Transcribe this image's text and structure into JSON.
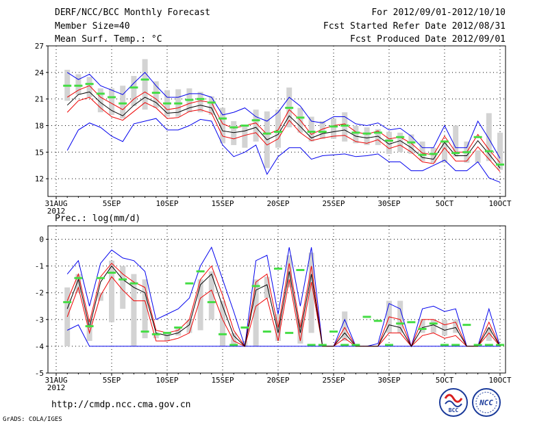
{
  "header": {
    "title": "DERF/NCC/BCC Monthly Forecast",
    "member_size": "Member Size=40",
    "variable": "Mean Surf. Temp.: °C",
    "period": "For 2012/09/01-2012/10/10",
    "refer_date": "Fcst Started Refer Date 2012/08/31",
    "produced_date": "Fcst Produced Date 2012/09/01"
  },
  "footer": {
    "url": "http://cmdp.ncc.cma.gov.cn",
    "grads_credit": "GrADS: COLA/IGES",
    "logo_left": "BCC",
    "logo_right": "NCC"
  },
  "colors": {
    "bar": "#d3d3d3",
    "ensemble_outer": "#0000ee",
    "ensemble_inner": "#ee0000",
    "ensemble_mean": "#000000",
    "marker": "#44dd44",
    "grid": "#000000"
  },
  "chart_data": [
    {
      "type": "bar",
      "title": "Mean Surf. Temp.: °C",
      "xlabel": "",
      "ylabel": "",
      "x": [
        0,
        1,
        2,
        3,
        4,
        5,
        6,
        7,
        8,
        9,
        10,
        11,
        12,
        13,
        14,
        15,
        16,
        17,
        18,
        19,
        20,
        21,
        22,
        23,
        24,
        25,
        26,
        27,
        28,
        29,
        30,
        31,
        32,
        33,
        34,
        35,
        36,
        37,
        38,
        39,
        40
      ],
      "xticks": [
        {
          "x": 0,
          "label": "31AUG",
          "sub": "2012"
        },
        {
          "x": 5,
          "label": "5SEP"
        },
        {
          "x": 10,
          "label": "10SEP"
        },
        {
          "x": 15,
          "label": "15SEP"
        },
        {
          "x": 20,
          "label": "20SEP"
        },
        {
          "x": 25,
          "label": "25SEP"
        },
        {
          "x": 30,
          "label": "30SEP"
        },
        {
          "x": 35,
          "label": "5OCT"
        },
        {
          "x": 40,
          "label": "10OCT"
        }
      ],
      "yticks": [
        12,
        15,
        18,
        21,
        24,
        27
      ],
      "ylim": [
        10,
        27
      ],
      "grid": true,
      "series": [
        {
          "name": "bar_high",
          "values": [
            null,
            24.3,
            23.8,
            23.5,
            22.2,
            22.2,
            22.5,
            23.6,
            25.5,
            23.0,
            22.0,
            22.1,
            22.2,
            21.8,
            21.3,
            20.0,
            18.5,
            18.0,
            19.8,
            19.6,
            19.8,
            22.3,
            20.0,
            19.0,
            18.5,
            18.8,
            19.5,
            18.0,
            17.8,
            17.6,
            17.3,
            17.2,
            17.0,
            16.2,
            15.5,
            16.3,
            18.0,
            16.2,
            15.2,
            19.4,
            17.2
          ]
        },
        {
          "name": "bar_low",
          "values": [
            null,
            20.8,
            21.5,
            21.2,
            19.5,
            19.2,
            18.8,
            20.2,
            19.8,
            20.0,
            19.0,
            19.0,
            19.5,
            19.5,
            19.2,
            16.0,
            15.8,
            15.5,
            16.2,
            13.2,
            15.5,
            17.8,
            17.2,
            16.2,
            16.5,
            16.5,
            16.2,
            16.0,
            15.8,
            15.8,
            14.8,
            15.0,
            14.8,
            14.0,
            13.8,
            13.8,
            14.5,
            13.8,
            13.8,
            14.0,
            13.0
          ]
        },
        {
          "name": "max",
          "values": [
            null,
            24.0,
            23.2,
            23.8,
            22.5,
            22.0,
            21.5,
            22.8,
            24.0,
            22.5,
            21.2,
            21.2,
            21.6,
            21.6,
            21.2,
            19.2,
            19.5,
            20.0,
            19.0,
            18.5,
            19.5,
            21.2,
            20.2,
            18.5,
            18.3,
            19.0,
            19.0,
            18.2,
            18.0,
            18.3,
            17.5,
            17.7,
            16.8,
            15.5,
            15.5,
            18.0,
            15.5,
            15.5,
            18.5,
            16.5,
            14.3
          ]
        },
        {
          "name": "p_high",
          "values": [
            null,
            21.2,
            22.0,
            22.5,
            21.2,
            20.5,
            19.8,
            21.0,
            21.8,
            21.0,
            19.8,
            20.0,
            20.5,
            20.8,
            20.6,
            18.2,
            17.7,
            18.0,
            18.3,
            17.0,
            17.5,
            19.8,
            18.6,
            17.0,
            17.6,
            18.0,
            18.2,
            17.3,
            17.0,
            17.4,
            16.5,
            16.7,
            16.0,
            14.9,
            14.7,
            16.8,
            15.0,
            15.0,
            17.0,
            15.3,
            13.8
          ]
        },
        {
          "name": "mean",
          "values": [
            null,
            20.3,
            21.5,
            21.8,
            20.6,
            19.7,
            19.1,
            20.3,
            21.2,
            20.6,
            19.4,
            19.5,
            20.0,
            20.3,
            20.0,
            17.4,
            17.2,
            17.4,
            17.8,
            16.4,
            17.0,
            19.1,
            17.9,
            16.6,
            17.1,
            17.3,
            17.5,
            16.8,
            16.6,
            16.8,
            15.9,
            16.3,
            15.5,
            14.4,
            14.2,
            16.1,
            14.6,
            14.6,
            16.3,
            14.8,
            13.2
          ]
        },
        {
          "name": "p_low",
          "values": [
            null,
            19.5,
            20.8,
            21.2,
            20.0,
            19.0,
            18.6,
            19.6,
            20.6,
            20.0,
            18.8,
            18.9,
            19.6,
            19.8,
            19.4,
            16.8,
            16.5,
            16.9,
            17.2,
            15.8,
            16.5,
            18.6,
            17.2,
            16.3,
            16.6,
            16.8,
            16.9,
            16.2,
            16.0,
            16.4,
            15.4,
            15.8,
            15.0,
            13.9,
            13.7,
            15.5,
            14.0,
            14.0,
            15.6,
            14.2,
            12.8
          ]
        },
        {
          "name": "min",
          "values": [
            null,
            15.2,
            17.5,
            18.3,
            17.8,
            16.8,
            16.2,
            18.2,
            18.5,
            18.8,
            17.5,
            17.5,
            18.0,
            18.7,
            18.5,
            15.8,
            14.5,
            15.0,
            15.8,
            12.5,
            14.5,
            15.5,
            15.5,
            14.2,
            14.6,
            14.7,
            14.8,
            14.5,
            14.6,
            14.8,
            13.9,
            13.9,
            12.9,
            12.9,
            13.5,
            14.1,
            12.9,
            12.9,
            13.9,
            12.1,
            11.6
          ]
        },
        {
          "name": "marker",
          "values": [
            null,
            22.5,
            22.5,
            22.7,
            21.6,
            21.2,
            20.5,
            22.3,
            23.2,
            21.7,
            20.5,
            20.5,
            20.9,
            21.0,
            20.6,
            18.8,
            17.8,
            18.0,
            18.6,
            17.1,
            17.3,
            20.0,
            18.9,
            17.3,
            17.3,
            17.9,
            18.0,
            17.2,
            17.1,
            17.2,
            16.3,
            16.7,
            16.1,
            14.7,
            14.8,
            16.2,
            14.9,
            15.0,
            16.7,
            15.1,
            13.6
          ]
        }
      ]
    },
    {
      "type": "bar",
      "title": "Prec.: log(mm/d)",
      "xlabel": "",
      "ylabel": "",
      "x": [
        0,
        1,
        2,
        3,
        4,
        5,
        6,
        7,
        8,
        9,
        10,
        11,
        12,
        13,
        14,
        15,
        16,
        17,
        18,
        19,
        20,
        21,
        22,
        23,
        24,
        25,
        26,
        27,
        28,
        29,
        30,
        31,
        32,
        33,
        34,
        35,
        36,
        37,
        38,
        39,
        40
      ],
      "xticks": [
        {
          "x": 0,
          "label": "31AUG",
          "sub": "2012"
        },
        {
          "x": 5,
          "label": "5SEP"
        },
        {
          "x": 10,
          "label": "10SEP"
        },
        {
          "x": 15,
          "label": "15SEP"
        },
        {
          "x": 20,
          "label": "20SEP"
        },
        {
          "x": 25,
          "label": "25SEP"
        },
        {
          "x": 30,
          "label": "30SEP"
        },
        {
          "x": 35,
          "label": "5OCT"
        },
        {
          "x": 40,
          "label": "10OCT"
        }
      ],
      "yticks": [
        -5,
        -4,
        -3,
        -2,
        -1,
        0
      ],
      "ylim": [
        -5,
        0.5
      ],
      "grid": true,
      "series": [
        {
          "name": "bar_high",
          "values": [
            null,
            -1.8,
            -1.3,
            -3.0,
            -2.0,
            -0.8,
            -1.0,
            -1.3,
            -1.5,
            -3.5,
            -3.5,
            -3.3,
            -3.0,
            -1.5,
            -1.2,
            -2.3,
            -3.5,
            -3.8,
            -1.5,
            -1.4,
            -2.8,
            -0.6,
            -3.0,
            -0.5,
            -4.0,
            -4.0,
            -2.7,
            -4.0,
            -4.0,
            -4.0,
            -2.3,
            -2.3,
            -4.0,
            -3.0,
            -3.0,
            -3.0,
            -3.0,
            -4.0,
            -4.0,
            -3.3,
            -4.0
          ]
        },
        {
          "name": "bar_low",
          "values": [
            null,
            -4.0,
            -2.0,
            -3.8,
            -2.3,
            -3.1,
            -2.6,
            -4.0,
            -3.7,
            -3.7,
            -3.8,
            -3.6,
            -3.5,
            -3.4,
            -3.0,
            -4.0,
            -4.0,
            -4.0,
            -4.0,
            -2.2,
            -3.8,
            -1.8,
            -3.9,
            -3.5,
            -4.0,
            -4.0,
            -3.8,
            -4.0,
            -4.0,
            -4.0,
            -3.5,
            -3.5,
            -4.0,
            -3.5,
            -3.5,
            -3.6,
            -3.5,
            -4.0,
            -4.0,
            -3.8,
            -4.0
          ]
        },
        {
          "name": "max",
          "values": [
            null,
            -1.3,
            -0.8,
            -2.5,
            -0.9,
            -0.4,
            -0.7,
            -0.8,
            -1.2,
            -3.0,
            -2.8,
            -2.6,
            -2.2,
            -1.0,
            -0.3,
            -1.5,
            -2.7,
            -4.0,
            -0.8,
            -0.6,
            -2.8,
            -0.3,
            -2.5,
            -0.3,
            -4.0,
            -4.0,
            -3.0,
            -4.0,
            -4.0,
            -3.9,
            -2.4,
            -2.6,
            -4.0,
            -2.6,
            -2.5,
            -2.7,
            -2.6,
            -4.0,
            -4.0,
            -2.6,
            -4.0
          ]
        },
        {
          "name": "p_high",
          "values": [
            null,
            -2.3,
            -1.3,
            -3.1,
            -1.4,
            -0.9,
            -1.3,
            -1.6,
            -1.8,
            -3.4,
            -3.5,
            -3.4,
            -3.0,
            -1.5,
            -1.0,
            -2.1,
            -3.4,
            -4.0,
            -1.6,
            -1.3,
            -3.3,
            -0.9,
            -3.3,
            -1.0,
            -4.0,
            -4.0,
            -3.3,
            -4.0,
            -4.0,
            -4.0,
            -2.9,
            -3.0,
            -4.0,
            -3.0,
            -3.0,
            -3.2,
            -3.1,
            -4.0,
            -4.0,
            -3.1,
            -4.0
          ]
        },
        {
          "name": "mean",
          "values": [
            null,
            -2.6,
            -1.5,
            -3.3,
            -1.6,
            -1.0,
            -1.5,
            -1.8,
            -2.0,
            -3.5,
            -3.6,
            -3.5,
            -3.2,
            -1.7,
            -1.3,
            -2.5,
            -3.6,
            -4.0,
            -1.9,
            -1.7,
            -3.5,
            -1.2,
            -3.5,
            -1.3,
            -4.0,
            -4.0,
            -3.5,
            -4.0,
            -4.0,
            -4.0,
            -3.2,
            -3.3,
            -4.0,
            -3.3,
            -3.2,
            -3.4,
            -3.3,
            -4.0,
            -4.0,
            -3.3,
            -4.0
          ]
        },
        {
          "name": "p_low",
          "values": [
            null,
            -2.9,
            -1.8,
            -3.5,
            -2.1,
            -1.4,
            -1.9,
            -2.3,
            -2.3,
            -3.8,
            -3.8,
            -3.7,
            -3.5,
            -2.2,
            -1.9,
            -3.0,
            -3.8,
            -4.0,
            -2.5,
            -2.2,
            -3.8,
            -1.5,
            -3.8,
            -1.6,
            -4.0,
            -4.0,
            -3.7,
            -4.0,
            -4.0,
            -4.0,
            -3.5,
            -3.5,
            -4.0,
            -3.6,
            -3.5,
            -3.7,
            -3.6,
            -4.0,
            -4.0,
            -3.5,
            -4.0
          ]
        },
        {
          "name": "min",
          "values": [
            null,
            -3.4,
            -3.2,
            -4.0,
            -4.0,
            -4.0,
            -4.0,
            -4.0,
            -4.0,
            -4.0,
            -4.0,
            -4.0,
            -4.0,
            -4.0,
            -4.0,
            -4.0,
            -4.0,
            -4.0,
            -4.0,
            -4.0,
            -4.0,
            -4.0,
            -4.0,
            -4.0,
            -4.0,
            -4.0,
            -4.0,
            -4.0,
            -4.0,
            -4.0,
            -4.0,
            -4.0,
            -4.0,
            -4.0,
            -4.0,
            -4.0,
            -4.0,
            -4.0,
            -4.0,
            -4.0,
            -4.0
          ]
        },
        {
          "name": "marker",
          "values": [
            null,
            -2.35,
            -1.45,
            -3.25,
            -1.45,
            -1.25,
            -1.5,
            -1.65,
            -3.45,
            -3.55,
            -3.5,
            -3.3,
            -1.65,
            -1.2,
            -2.35,
            -3.55,
            -3.95,
            -3.3,
            -1.75,
            -3.45,
            -1.1,
            -3.5,
            -1.15,
            -3.95,
            -3.95,
            -3.45,
            -3.95,
            -3.95,
            -2.9,
            -3.05,
            -3.95,
            -3.15,
            -3.1,
            -3.35,
            -3.15,
            -3.95,
            -3.95,
            -3.2,
            -3.95,
            -3.95,
            -3.95
          ]
        }
      ]
    }
  ]
}
